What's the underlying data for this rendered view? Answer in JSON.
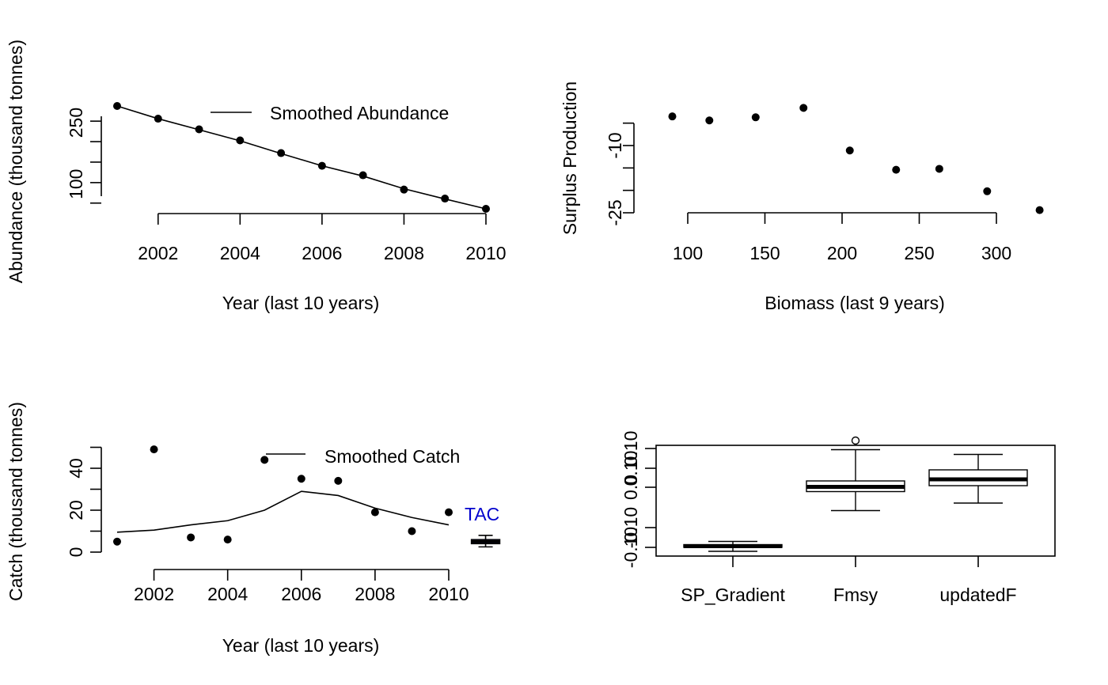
{
  "chart_data": [
    {
      "id": "abundance",
      "type": "line",
      "title": "",
      "xlabel": "Year (last 10 years)",
      "ylabel": "Abundance (thousand tonnes)",
      "x": [
        2001,
        2002,
        2003,
        2004,
        2005,
        2006,
        2007,
        2008,
        2009,
        2010
      ],
      "xticks": [
        "2002",
        "2004",
        "2006",
        "2008",
        "2010"
      ],
      "yticks": [
        "100",
        "250"
      ],
      "ylim": [
        30,
        380
      ],
      "series": [
        {
          "name": "",
          "kind": "points",
          "values": [
            337,
            306,
            280,
            253,
            222,
            191,
            168,
            133,
            111,
            86
          ]
        },
        {
          "name": "Smoothed Abundance",
          "kind": "line",
          "values": [
            337,
            306,
            279,
            252,
            221,
            191,
            166,
            135,
            110,
            86
          ]
        }
      ],
      "legend": "top-right"
    },
    {
      "id": "surplus",
      "type": "scatter",
      "title": "",
      "xlabel": "Biomass (last 9 years)",
      "ylabel": "Surplus Production",
      "x": [
        90,
        114,
        144,
        175,
        205,
        235,
        263,
        294,
        328
      ],
      "y": [
        -3.5,
        -4.4,
        -3.7,
        -1.6,
        -11.1,
        -15.4,
        -15.2,
        -20.2,
        -24.4
      ],
      "xticks": [
        "100",
        "150",
        "200",
        "250",
        "300"
      ],
      "yticks": [
        "-10",
        "-25"
      ],
      "ylim": [
        -28,
        1
      ]
    },
    {
      "id": "catch",
      "type": "line",
      "title": "",
      "xlabel": "Year (last 10 years)",
      "ylabel": "Catch (thousand tonnes)",
      "x": [
        2001,
        2002,
        2003,
        2004,
        2005,
        2006,
        2007,
        2008,
        2009,
        2010
      ],
      "xticks": [
        "2002",
        "2004",
        "2006",
        "2008",
        "2010"
      ],
      "yticks": [
        "0",
        "20",
        "40"
      ],
      "ylim": [
        -3,
        52
      ],
      "series": [
        {
          "name": "",
          "kind": "points",
          "values": [
            5,
            49,
            7,
            6,
            44,
            35,
            34,
            19,
            10,
            19
          ]
        },
        {
          "name": "Smoothed Catch",
          "kind": "line",
          "values": [
            9.5,
            10.5,
            13,
            15,
            20,
            29,
            27,
            21,
            16.5,
            13
          ]
        }
      ],
      "legend": "top-right",
      "tac": {
        "label": "TAC",
        "label_color": "#0000cd",
        "box_color": "#00008b",
        "x": 2011,
        "whisker_low": 2.5,
        "q1": 4,
        "median": 5,
        "q3": 6,
        "whisker_high": 8
      }
    },
    {
      "id": "boxplot",
      "type": "box",
      "title": "",
      "xlabel": "",
      "ylabel": "",
      "categories": [
        "SP_Gradient",
        "Fmsy",
        "updatedF"
      ],
      "yticks": [
        "-0.10",
        "-0.10",
        "0.0",
        "0.10",
        "0.10"
      ],
      "ylim": [
        -0.13,
        0.23
      ],
      "boxes": [
        {
          "whisker_low": -0.11,
          "q1": -0.1,
          "median": -0.097,
          "q3": -0.093,
          "whisker_high": -0.085,
          "outliers": []
        },
        {
          "whisker_low": -0.007,
          "q1": 0.041,
          "median": 0.053,
          "q3": 0.068,
          "whisker_high": 0.147,
          "outliers": [
            0.17
          ]
        },
        {
          "whisker_low": 0.012,
          "q1": 0.056,
          "median": 0.072,
          "q3": 0.096,
          "whisker_high": 0.135,
          "outliers": []
        }
      ]
    }
  ]
}
